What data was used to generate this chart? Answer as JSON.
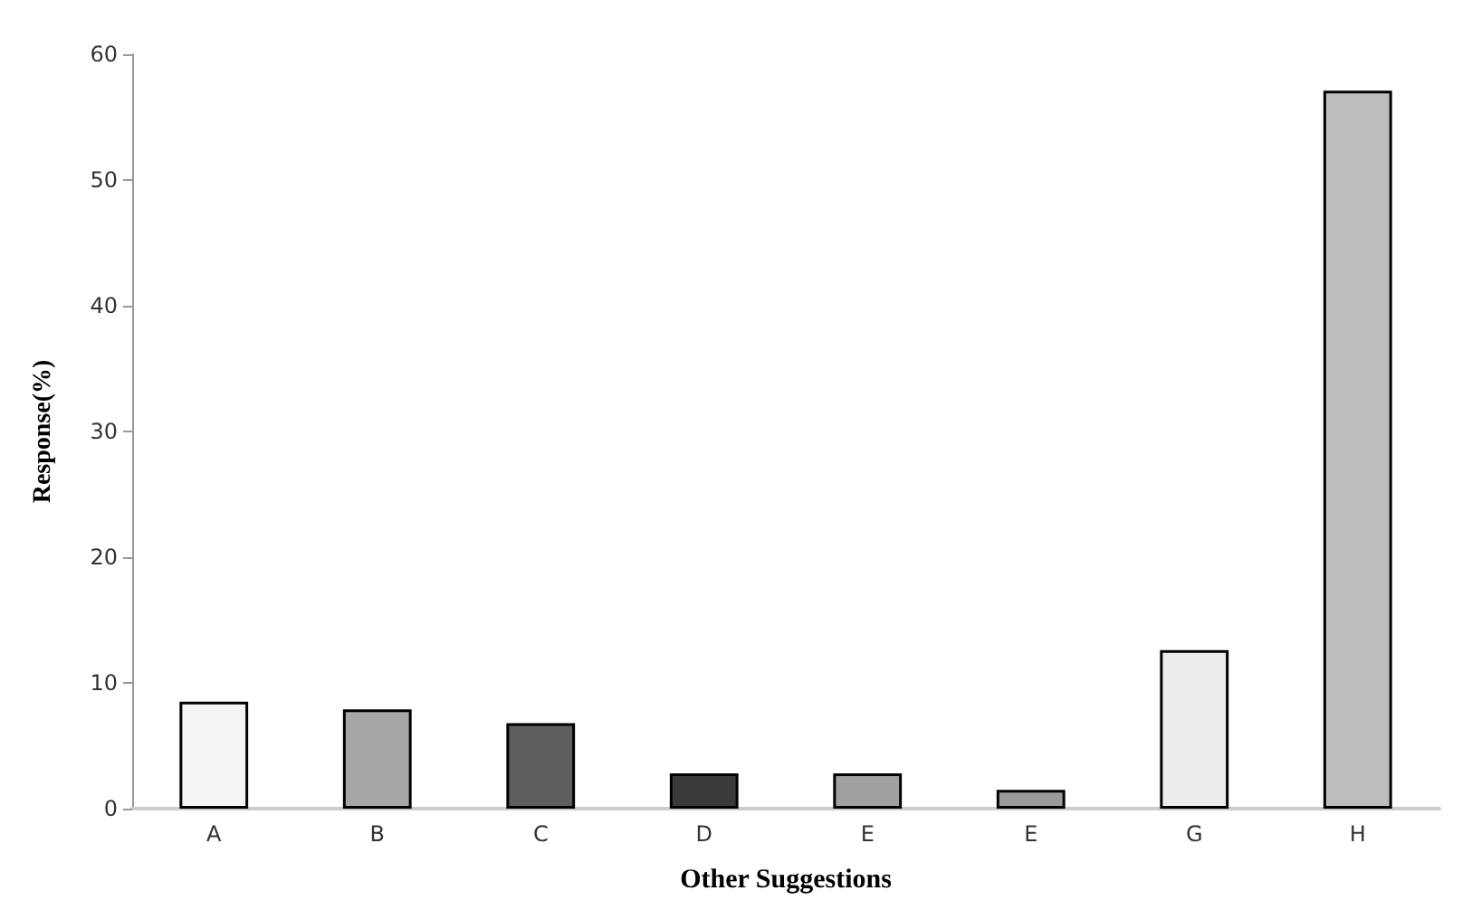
{
  "chart_data": {
    "type": "bar",
    "xlabel": "Other Suggestions",
    "ylabel": "Response(%)",
    "categories": [
      "A",
      "B",
      "C",
      "D",
      "E",
      "E",
      "G",
      "H"
    ],
    "values": [
      8.5,
      7.9,
      6.8,
      2.8,
      2.8,
      1.5,
      12.6,
      57.1
    ],
    "colors": [
      "#f4f4f4",
      "#a6a6a6",
      "#5e5e5e",
      "#3a3a3a",
      "#a0a0a0",
      "#9a9a9a",
      "#ececec",
      "#bdbdbd"
    ],
    "ylim": [
      0,
      60
    ],
    "yticks": [
      0,
      10,
      20,
      30,
      40,
      50,
      60
    ],
    "grid": false
  }
}
